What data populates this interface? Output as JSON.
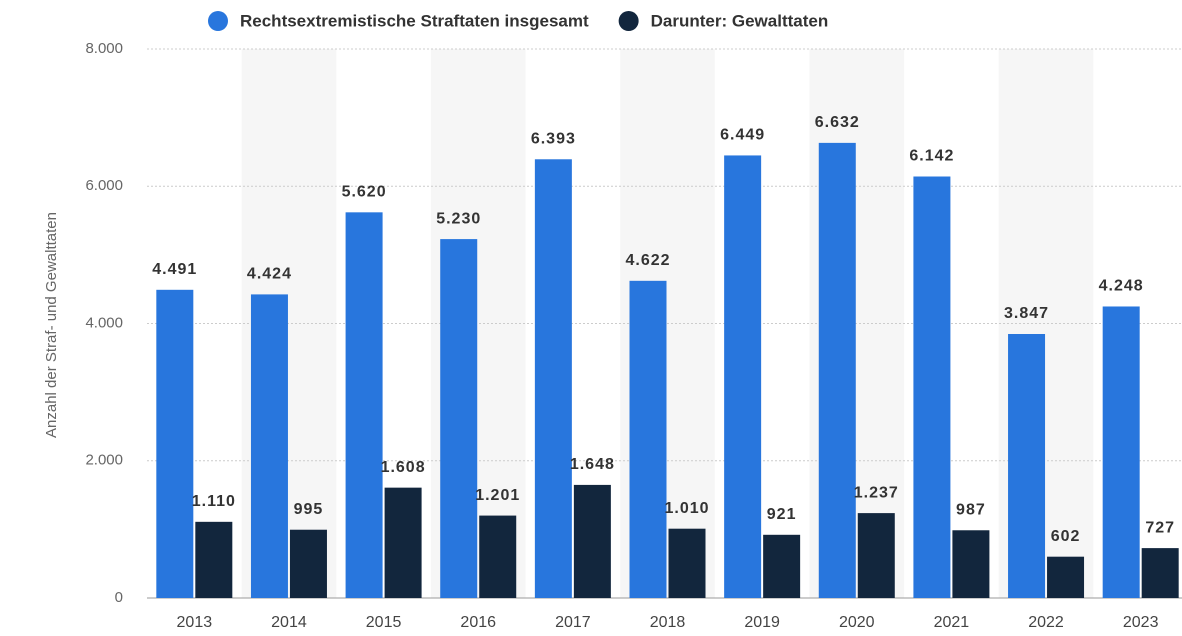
{
  "chart_data": {
    "type": "bar",
    "y_axis_label": "Anzahl der Straf- und Gewalttaten",
    "categories": [
      "2013",
      "2014",
      "2015",
      "2016",
      "2017",
      "2018",
      "2019",
      "2020",
      "2021",
      "2022",
      "2023"
    ],
    "series": [
      {
        "name": "Rechtsextremistische Straftaten insgesamt",
        "color": "#2876dd",
        "values": [
          4491,
          4424,
          5620,
          5230,
          6393,
          4622,
          6449,
          6632,
          6142,
          3847,
          4248
        ],
        "value_labels": [
          "4.491",
          "4.424",
          "5.620",
          "5.230",
          "6.393",
          "4.622",
          "6.449",
          "6.632",
          "6.142",
          "3.847",
          "4.248"
        ]
      },
      {
        "name": "Darunter: Gewalttaten",
        "color": "#12263d",
        "values": [
          1110,
          995,
          1608,
          1201,
          1648,
          1010,
          921,
          1237,
          987,
          602,
          727
        ],
        "value_labels": [
          "1.110",
          "995",
          "1.608",
          "1.201",
          "1.648",
          "1.010",
          "921",
          "1.237",
          "987",
          "602",
          "727"
        ]
      }
    ],
    "ylim": [
      0,
      8000
    ],
    "yticks": [
      0,
      {
        "value": 2000,
        "label": "2.000"
      },
      {
        "value": 4000,
        "label": "4.000"
      },
      {
        "value": 6000,
        "label": "6.000"
      },
      {
        "value": 8000,
        "label": "8.000"
      }
    ],
    "grid": true
  }
}
